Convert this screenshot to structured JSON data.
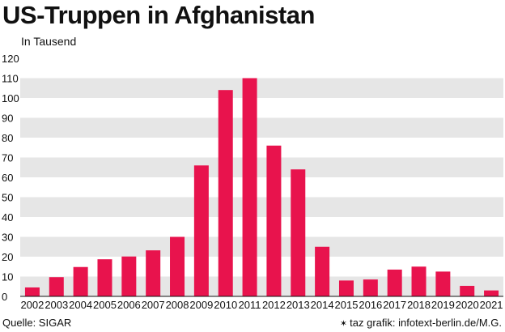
{
  "title": "US-Truppen in Afghanistan",
  "unit_label": "In Tausend",
  "source": "Quelle: SIGAR",
  "credit": "taz grafik: infotext-berlin.de/M.G.",
  "colors": {
    "bar": "#e8134d",
    "band": "#e6e6e6"
  },
  "chart_data": {
    "type": "bar",
    "title": "US-Truppen in Afghanistan",
    "ylabel": "In Tausend",
    "ylim": [
      0,
      120
    ],
    "yticks": [
      0,
      10,
      20,
      30,
      40,
      50,
      60,
      70,
      80,
      90,
      100,
      110,
      120
    ],
    "categories": [
      "2002",
      "2003",
      "2004",
      "2005",
      "2006",
      "2007",
      "2008",
      "2009",
      "2010",
      "2011",
      "2012",
      "2013",
      "2014",
      "2015",
      "2016",
      "2017",
      "2018",
      "2019",
      "2020",
      "2021"
    ],
    "values": [
      4.5,
      9.7,
      14.8,
      18.7,
      20.1,
      23.2,
      30,
      66,
      104,
      110,
      76,
      64,
      25,
      8,
      8.5,
      13.5,
      15,
      12.5,
      5.3,
      3
    ],
    "grid": "alternating bands"
  }
}
